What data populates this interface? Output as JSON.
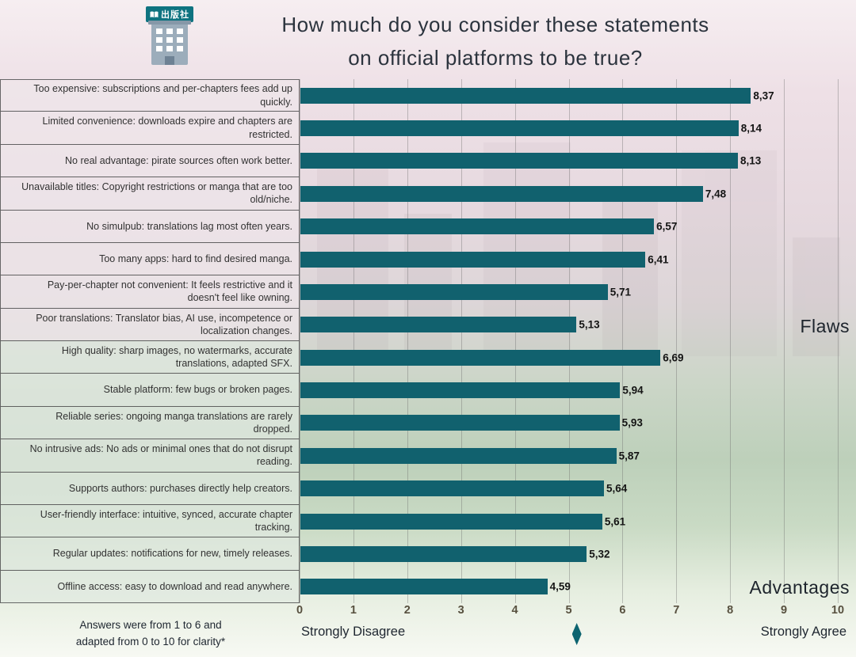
{
  "header": {
    "title_line1": "How much do you consider these statements",
    "title_line2": "on official platforms to be true?",
    "logo_text": "出版社"
  },
  "chart_data": {
    "type": "bar",
    "orientation": "horizontal",
    "title": "How much do you consider these statements on official platforms to be true?",
    "xlim": [
      0,
      10
    ],
    "x_ticks": [
      "0",
      "1",
      "2",
      "3",
      "4",
      "5",
      "6",
      "7",
      "8",
      "9",
      "10"
    ],
    "grid": true,
    "bar_color": "#11616e",
    "categories": [
      "Too expensive: subscriptions and per-chapters fees add up quickly.",
      "Limited convenience: downloads expire and chapters are restricted.",
      "No real advantage: pirate sources often work better.",
      "Unavailable titles: Copyright restrictions or manga that are too old/niche.",
      "No simulpub: translations lag most often years.",
      "Too many apps: hard to find desired manga.",
      "Pay-per-chapter not convenient: It feels restrictive and it doesn't feel like owning.",
      "Poor translations: Translator bias, AI use, incompetence or localization changes.",
      "High quality: sharp images, no watermarks, accurate translations, adapted SFX.",
      "Stable platform: few bugs or broken pages.",
      "Reliable series: ongoing manga translations are rarely dropped.",
      "No intrusive ads: No ads or minimal ones that do not disrupt reading.",
      "Supports authors: purchases directly help creators.",
      "User-friendly interface: intuitive, synced, accurate chapter tracking.",
      "Regular updates: notifications for new, timely releases.",
      "Offline access: easy to download and read anywhere."
    ],
    "values": [
      8.37,
      8.14,
      8.13,
      7.48,
      6.57,
      6.41,
      5.71,
      5.13,
      6.69,
      5.94,
      5.93,
      5.87,
      5.64,
      5.61,
      5.32,
      4.59
    ],
    "value_labels": [
      "8,37",
      "8,14",
      "8,13",
      "7,48",
      "6,57",
      "6,41",
      "5,71",
      "5,13",
      "6,69",
      "5,94",
      "5,93",
      "5,87",
      "5,64",
      "5,61",
      "5,32",
      "4,59"
    ],
    "groups": {
      "flaws_label": "Flaws",
      "advantages_label": "Advantages",
      "flaws_count": 8
    },
    "axis_left_label": "Strongly Disagree",
    "axis_right_label": "Strongly Agree",
    "marker_x": 5.15,
    "footnote_line1": "Answers were from 1 to 6 and",
    "footnote_line2": "adapted from 0 to 10 for clarity*"
  }
}
